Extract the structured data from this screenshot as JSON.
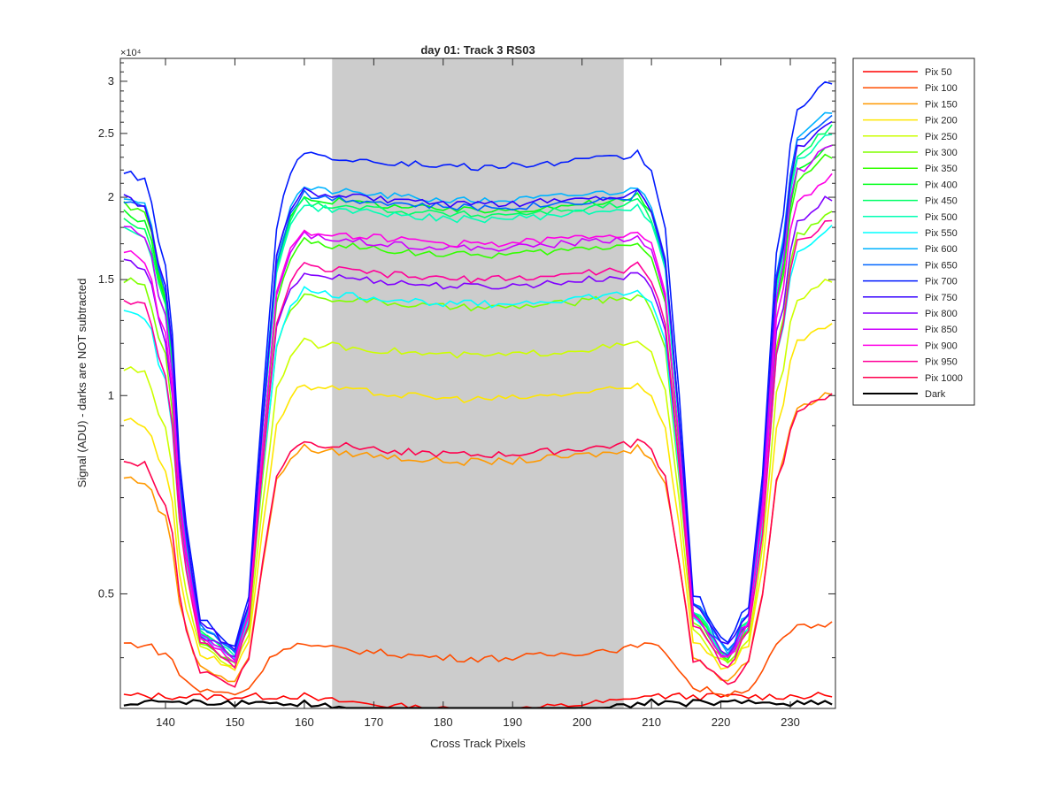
{
  "chart_data": {
    "type": "line",
    "title": "day 01: Track 3  RS03",
    "xlabel": "Cross Track Pixels",
    "ylabel": "Signal (ADU) - darks are NOT subtracted",
    "y_exponent_label": "×10⁴",
    "xlim": [
      133.5,
      236.5
    ],
    "ylim": [
      3350,
      32500
    ],
    "yscale": "log",
    "x_ticks": [
      140,
      150,
      160,
      170,
      180,
      190,
      200,
      210,
      220,
      230
    ],
    "x_tick_labels": [
      "140",
      "150",
      "160",
      "170",
      "180",
      "190",
      "200",
      "210",
      "220",
      "230"
    ],
    "y_ticks": [
      5000,
      10000,
      15000,
      20000,
      25000,
      30000
    ],
    "y_tick_labels": [
      "0.5",
      "1",
      "1.5",
      "2",
      "2.5",
      "3"
    ],
    "shaded_region": {
      "x_start": 164,
      "x_end": 206,
      "color": "#cccccc"
    },
    "legend_position": "outside-right",
    "profile_shape": {
      "x_left_edge": [
        134,
        137,
        140,
        143,
        145,
        150,
        152,
        154,
        156,
        158,
        160
      ],
      "x_right_edge": [
        208,
        210,
        212,
        214,
        216,
        221,
        224,
        226,
        228,
        231,
        236
      ]
    },
    "series": [
      {
        "name": "Pix 50",
        "color": "#ff0000",
        "far_left": 3500,
        "min": 3490,
        "center": 3500,
        "far_right": 3500
      },
      {
        "name": "Pix 100",
        "color": "#ff4d00",
        "far_left": 4200,
        "min": 3530,
        "center": 4200,
        "far_right": 4500
      },
      {
        "name": "Pix 150",
        "color": "#ff9900",
        "far_left": 7500,
        "min": 3700,
        "center": 8350,
        "far_right": 10100
      },
      {
        "name": "Pix 200",
        "color": "#ffe600",
        "far_left": 9200,
        "min": 3850,
        "center": 10400,
        "far_right": 12800
      },
      {
        "name": "Pix 250",
        "color": "#ccff00",
        "far_left": 11000,
        "min": 3900,
        "center": 12100,
        "far_right": 15000
      },
      {
        "name": "Pix 300",
        "color": "#80ff00",
        "far_left": 15000,
        "min": 3950,
        "center": 14300,
        "far_right": 19000
      },
      {
        "name": "Pix 350",
        "color": "#33ff00",
        "far_left": 19500,
        "min": 3960,
        "center": 17200,
        "far_right": 23200
      },
      {
        "name": "Pix 400",
        "color": "#00ff1a",
        "far_left": 19000,
        "min": 4000,
        "center": 20100,
        "far_right": 24000
      },
      {
        "name": "Pix 450",
        "color": "#00ff66",
        "far_left": 18500,
        "min": 4030,
        "center": 19800,
        "far_right": 25500
      },
      {
        "name": "Pix 500",
        "color": "#00ffb3",
        "far_left": 18000,
        "min": 4050,
        "center": 19500,
        "far_right": 25000
      },
      {
        "name": "Pix 550",
        "color": "#00ffff",
        "far_left": 13500,
        "min": 4020,
        "center": 14500,
        "far_right": 18000
      },
      {
        "name": "Pix 600",
        "color": "#00b3ff",
        "far_left": 20000,
        "min": 4100,
        "center": 20800,
        "far_right": 27000
      },
      {
        "name": "Pix 650",
        "color": "#0066ff",
        "far_left": 19800,
        "min": 4120,
        "center": 20300,
        "far_right": 26500
      },
      {
        "name": "Pix 700",
        "color": "#001aff",
        "far_left": 22000,
        "min": 4200,
        "center": 23400,
        "far_right": 30000
      },
      {
        "name": "Pix 750",
        "color": "#3300ff",
        "far_left": 20000,
        "min": 4150,
        "center": 20500,
        "far_right": 26000
      },
      {
        "name": "Pix 800",
        "color": "#8000ff",
        "far_left": 16000,
        "min": 4050,
        "center": 15400,
        "far_right": 20000
      },
      {
        "name": "Pix 850",
        "color": "#cc00ff",
        "far_left": 18000,
        "min": 4000,
        "center": 17600,
        "far_right": 24000
      },
      {
        "name": "Pix 900",
        "color": "#ff00e6",
        "far_left": 16500,
        "min": 3980,
        "center": 17900,
        "far_right": 21500
      },
      {
        "name": "Pix 950",
        "color": "#ff0099",
        "far_left": 14000,
        "min": 3900,
        "center": 15800,
        "far_right": 18500
      },
      {
        "name": "Pix 1000",
        "color": "#ff004d",
        "far_left": 8000,
        "min": 3650,
        "center": 8550,
        "far_right": 10000
      },
      {
        "name": "Dark",
        "color": "#000000",
        "far_left": 3420,
        "min": 3410,
        "center": 3420,
        "far_right": 3420
      }
    ]
  }
}
